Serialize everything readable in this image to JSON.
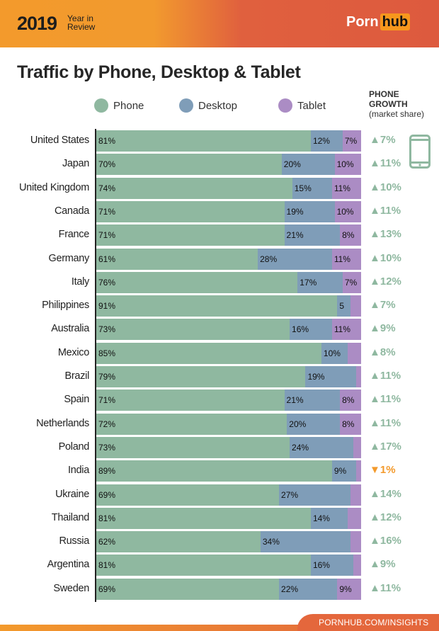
{
  "header": {
    "year": "2019",
    "subtitle": "Year in Review",
    "logo_left": "Porn",
    "logo_right": "hub"
  },
  "footer": {
    "link": "PORNHUB.COM/INSIGHTS"
  },
  "colors": {
    "phone": "#8fb8a0",
    "desktop": "#7f9db8",
    "tablet": "#ab8cc4",
    "growth_up": "#8fb8a0",
    "growth_down": "#f39a2c"
  },
  "chart_data": {
    "type": "bar",
    "orientation": "horizontal",
    "stacked": true,
    "title": "Traffic by Phone, Desktop & Tablet",
    "legend": [
      "Phone",
      "Desktop",
      "Tablet"
    ],
    "legend_placement": "top",
    "growth_header": {
      "line1": "PHONE",
      "line2": "GROWTH",
      "line3": "(market share)"
    },
    "growth_icon": "smartphone-icon",
    "categories": [
      "United States",
      "Japan",
      "United Kingdom",
      "Canada",
      "France",
      "Germany",
      "Italy",
      "Philippines",
      "Australia",
      "Mexico",
      "Brazil",
      "Spain",
      "Netherlands",
      "Poland",
      "India",
      "Ukraine",
      "Thailand",
      "Russia",
      "Argentina",
      "Sweden"
    ],
    "series": [
      {
        "name": "Phone",
        "values": [
          81,
          70,
          74,
          71,
          71,
          61,
          76,
          91,
          73,
          85,
          79,
          71,
          72,
          73,
          89,
          69,
          81,
          62,
          81,
          69
        ],
        "labels": [
          "81%",
          "70%",
          "74%",
          "71%",
          "71%",
          "61%",
          "76%",
          "91%",
          "73%",
          "85%",
          "79%",
          "71%",
          "72%",
          "73%",
          "89%",
          "69%",
          "81%",
          "62%",
          "81%",
          "69%"
        ]
      },
      {
        "name": "Desktop",
        "values": [
          12,
          20,
          15,
          19,
          21,
          28,
          17,
          5,
          16,
          10,
          19,
          21,
          20,
          24,
          9,
          27,
          14,
          34,
          16,
          22
        ],
        "labels": [
          "12%",
          "20%",
          "15%",
          "19%",
          "21%",
          "28%",
          "17%",
          "5",
          "16%",
          "10%",
          "19%",
          "21%",
          "20%",
          "24%",
          "9%",
          "27%",
          "14%",
          "34%",
          "16%",
          "22%"
        ]
      },
      {
        "name": "Tablet",
        "values": [
          7,
          10,
          11,
          10,
          8,
          11,
          7,
          4,
          11,
          5,
          2,
          8,
          8,
          3,
          2,
          4,
          5,
          4,
          3,
          9
        ],
        "labels": [
          "7%",
          "10%",
          "11%",
          "10%",
          "8%",
          "11%",
          "7%",
          "",
          "11%",
          "",
          "",
          "8%",
          "8%",
          "",
          "",
          "",
          "",
          "",
          "",
          "9%"
        ]
      }
    ],
    "phone_growth": [
      "▲7%",
      "▲11%",
      "▲10%",
      "▲11%",
      "▲13%",
      "▲10%",
      "▲12%",
      "▲7%",
      "▲9%",
      "▲8%",
      "▲11%",
      "▲11%",
      "▲11%",
      "▲17%",
      "▼1%",
      "▲14%",
      "▲12%",
      "▲16%",
      "▲9%",
      "▲11%"
    ],
    "phone_growth_direction": [
      "up",
      "up",
      "up",
      "up",
      "up",
      "up",
      "up",
      "up",
      "up",
      "up",
      "up",
      "up",
      "up",
      "up",
      "down",
      "up",
      "up",
      "up",
      "up",
      "up"
    ],
    "xlim": [
      0,
      100
    ]
  }
}
